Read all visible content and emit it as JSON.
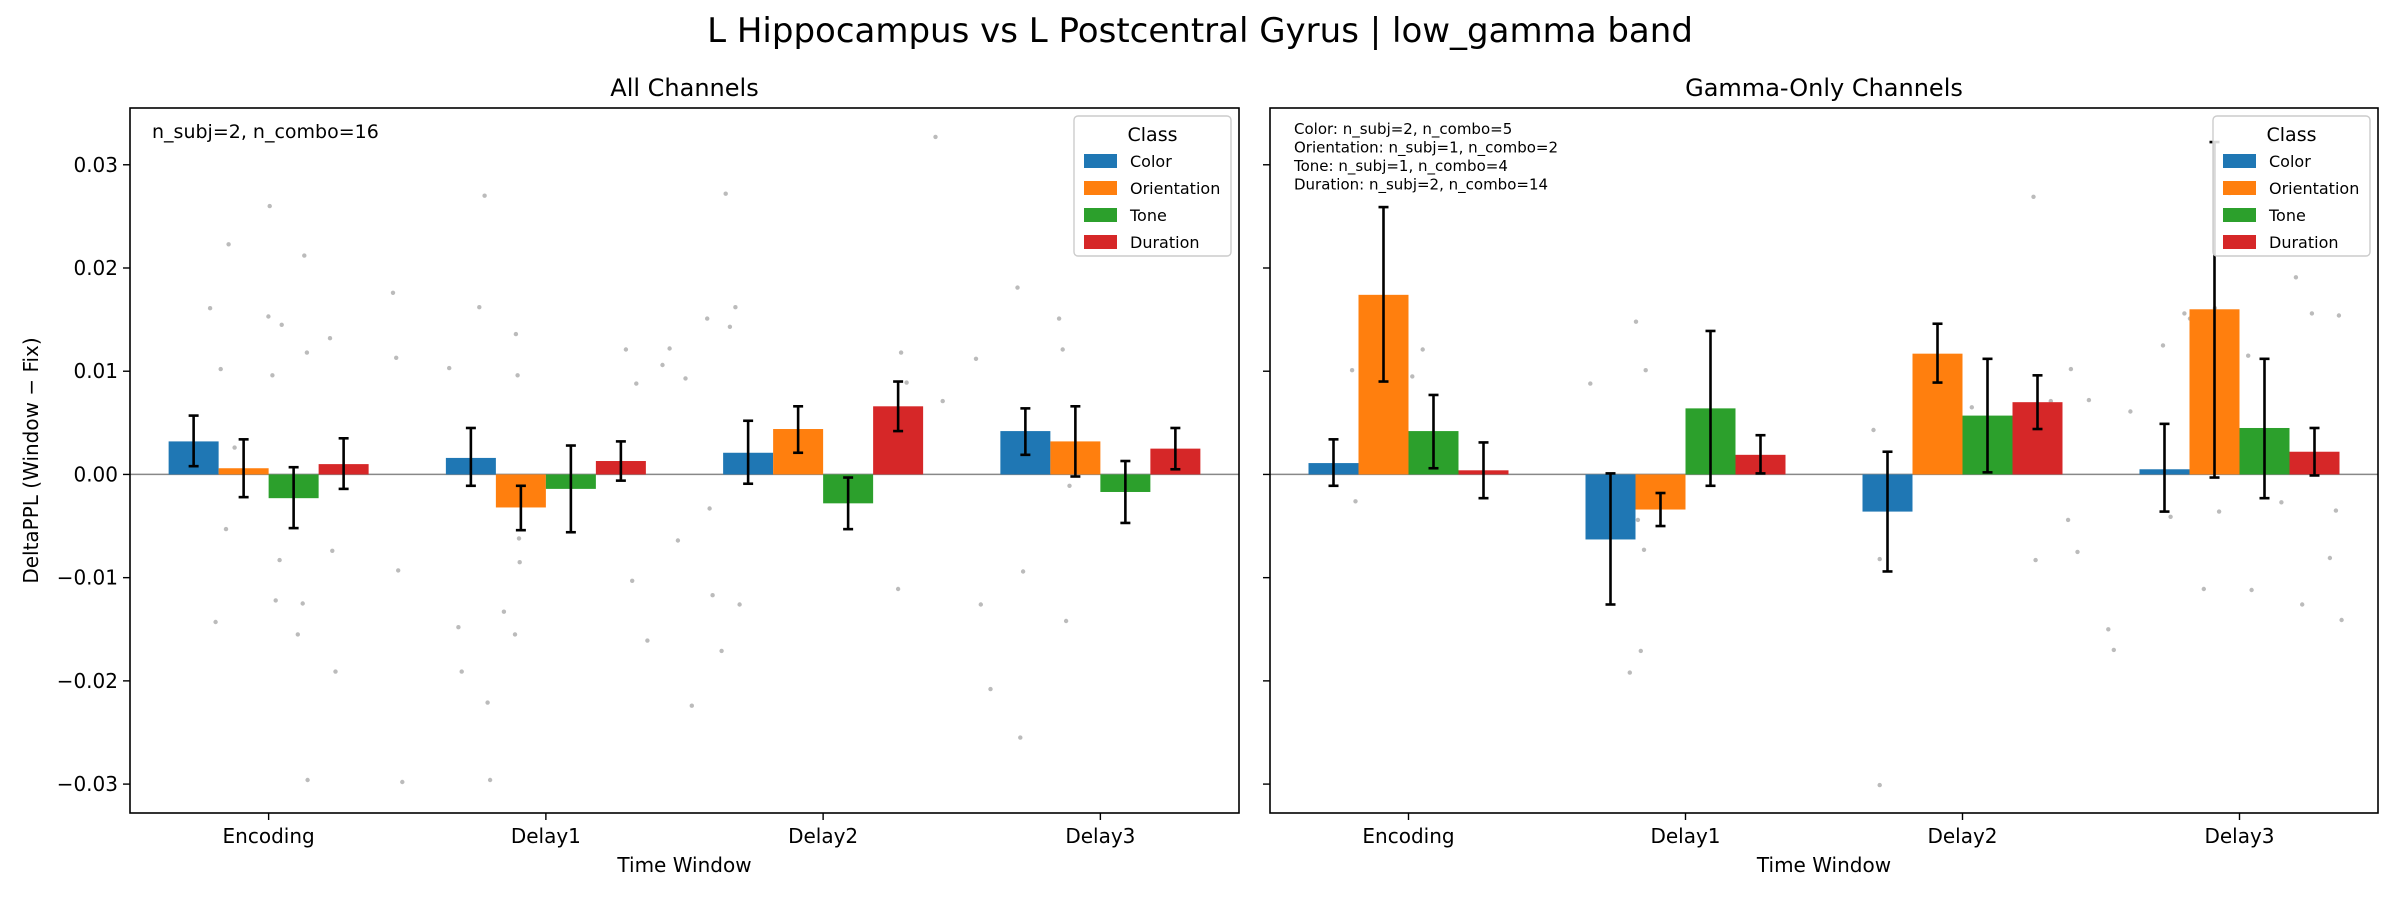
{
  "suptitle": "L Hippocampus vs L Postcentral Gyrus  |  low_gamma band",
  "ylabel": "DeltaPPL (Window − Fix)",
  "xlabel": "Time Window",
  "legend_title": "Class",
  "colors": {
    "Color": "#1f77b4",
    "Orientation": "#ff7f0e",
    "Tone": "#2ca02c",
    "Duration": "#d62728"
  },
  "chart_data": [
    {
      "type": "bar",
      "title": "All Channels",
      "xlabel": "Time Window",
      "ylabel": "DeltaPPL (Window − Fix)",
      "ylim": [
        -0.0328,
        0.0355
      ],
      "yticks": [
        "−0.03",
        "−0.02",
        "−0.01",
        "0.00",
        "0.01",
        "0.02",
        "0.03"
      ],
      "yticks_values": [
        -0.03,
        -0.02,
        -0.01,
        0.0,
        0.01,
        0.02,
        0.03
      ],
      "categories": [
        "Encoding",
        "Delay1",
        "Delay2",
        "Delay3"
      ],
      "annotations": [
        "n_subj=2, n_combo=16"
      ],
      "legend": {
        "title": "Class",
        "position": "upper right"
      },
      "series": [
        {
          "name": "Color",
          "values": [
            0.0032,
            0.0016,
            0.0021,
            0.0042
          ],
          "err_low": [
            0.0008,
            -0.0011,
            -0.0009,
            0.0019
          ],
          "err_high": [
            0.0057,
            0.0045,
            0.0052,
            0.0064
          ]
        },
        {
          "name": "Orientation",
          "values": [
            0.0006,
            -0.0032,
            0.0044,
            0.0032
          ],
          "err_low": [
            -0.0022,
            -0.0054,
            0.0021,
            -0.0002
          ],
          "err_high": [
            0.0034,
            -0.0011,
            0.0066,
            0.0066
          ]
        },
        {
          "name": "Tone",
          "values": [
            -0.0023,
            -0.0014,
            -0.0028,
            -0.0017
          ],
          "err_low": [
            -0.0052,
            -0.0056,
            -0.0053,
            -0.0047
          ],
          "err_high": [
            0.0007,
            0.0028,
            -0.0003,
            0.0013
          ]
        },
        {
          "name": "Duration",
          "values": [
            0.001,
            0.0013,
            0.0066,
            0.0025
          ],
          "err_low": [
            -0.0014,
            -0.0006,
            0.0042,
            0.0005
          ],
          "err_high": [
            0.0035,
            0.0032,
            0.009,
            0.0045
          ]
        }
      ],
      "points": [
        {
          "x": 0.1155,
          "y": 0.0161
        },
        {
          "x": 0.1308,
          "y": 0.0102
        },
        {
          "x": 0.1235,
          "y": -0.0143
        },
        {
          "x": 0.1385,
          "y": -0.0053
        },
        {
          "x": 0.1422,
          "y": 0.0223
        },
        {
          "x": 0.1509,
          "y": 0.0026
        },
        {
          "x": 0.2015,
          "y": 0.026
        },
        {
          "x": 0.1997,
          "y": 0.0153
        },
        {
          "x": 0.2055,
          "y": 0.0096
        },
        {
          "x": 0.2102,
          "y": -0.0122
        },
        {
          "x": 0.2158,
          "y": -0.0083
        },
        {
          "x": 0.2189,
          "y": 0.0145
        },
        {
          "x": 0.2515,
          "y": 0.0212
        },
        {
          "x": 0.2552,
          "y": 0.0118
        },
        {
          "x": 0.2491,
          "y": -0.0125
        },
        {
          "x": 0.2421,
          "y": -0.0155
        },
        {
          "x": 0.2562,
          "y": -0.0296
        },
        {
          "x": 0.2885,
          "y": 0.0132
        },
        {
          "x": 0.2918,
          "y": -0.0074
        },
        {
          "x": 0.2965,
          "y": -0.0191
        },
        {
          "x": 0.3795,
          "y": 0.0176
        },
        {
          "x": 0.3841,
          "y": 0.0113
        },
        {
          "x": 0.3869,
          "y": -0.0093
        },
        {
          "x": 0.3928,
          "y": -0.0298
        },
        {
          "x": 0.4605,
          "y": 0.0103
        },
        {
          "x": 0.4738,
          "y": -0.0148
        },
        {
          "x": 0.4785,
          "y": -0.0191
        },
        {
          "x": 0.5039,
          "y": 0.0162
        },
        {
          "x": 0.5116,
          "y": 0.027
        },
        {
          "x": 0.5159,
          "y": -0.0221
        },
        {
          "x": 0.5195,
          "y": -0.0296
        },
        {
          "x": 0.5568,
          "y": 0.0136
        },
        {
          "x": 0.5592,
          "y": 0.0096
        },
        {
          "x": 0.5612,
          "y": -0.0062
        },
        {
          "x": 0.5623,
          "y": -0.0085
        },
        {
          "x": 0.5395,
          "y": -0.0133
        },
        {
          "x": 0.5555,
          "y": -0.0155
        },
        {
          "x": 0.7155,
          "y": 0.0121
        },
        {
          "x": 0.7305,
          "y": 0.0088
        },
        {
          "x": 0.7245,
          "y": -0.0103
        },
        {
          "x": 0.7465,
          "y": -0.0161
        },
        {
          "x": 0.7682,
          "y": 0.0106
        },
        {
          "x": 0.7785,
          "y": 0.0122
        },
        {
          "x": 0.7905,
          "y": -0.0064
        },
        {
          "x": 0.8015,
          "y": 0.0093
        },
        {
          "x": 0.8105,
          "y": -0.0224
        },
        {
          "x": 0.8328,
          "y": 0.0151
        },
        {
          "x": 0.8362,
          "y": -0.0033
        },
        {
          "x": 0.8405,
          "y": -0.0117
        },
        {
          "x": 0.8595,
          "y": 0.0272
        },
        {
          "x": 0.8735,
          "y": 0.0162
        },
        {
          "x": 0.8655,
          "y": 0.0143
        },
        {
          "x": 0.8795,
          "y": -0.0126
        },
        {
          "x": 0.8535,
          "y": -0.0171
        },
        {
          "x": 1.1125,
          "y": 0.0118
        },
        {
          "x": 1.1205,
          "y": 0.0089
        },
        {
          "x": 1.1082,
          "y": -0.0111
        },
        {
          "x": 1.1225,
          "y": 0.0057
        },
        {
          "x": 1.1621,
          "y": 0.0327
        },
        {
          "x": 1.1725,
          "y": 0.0071
        },
        {
          "x": 1.2205,
          "y": 0.0112
        },
        {
          "x": 1.2275,
          "y": -0.0126
        },
        {
          "x": 1.2415,
          "y": -0.0208
        },
        {
          "x": 1.2805,
          "y": 0.0181
        },
        {
          "x": 1.2885,
          "y": -0.0094
        },
        {
          "x": 1.2845,
          "y": -0.0255
        },
        {
          "x": 1.3405,
          "y": 0.0151
        },
        {
          "x": 1.3457,
          "y": 0.0121
        },
        {
          "x": 1.3505,
          "y": -0.0142
        },
        {
          "x": 1.3555,
          "y": -0.0011
        }
      ]
    },
    {
      "type": "bar",
      "title": "Gamma-Only Channels",
      "xlabel": "Time Window",
      "ylabel": "",
      "ylim": [
        -0.0328,
        0.0355
      ],
      "categories": [
        "Encoding",
        "Delay1",
        "Delay2",
        "Delay3"
      ],
      "annotations": [
        "Color: n_subj=2, n_combo=5",
        "Orientation: n_subj=1, n_combo=2",
        "Tone: n_subj=1, n_combo=4",
        "Duration: n_subj=2, n_combo=14"
      ],
      "legend": {
        "title": "Class",
        "position": "upper right"
      },
      "series": [
        {
          "name": "Color",
          "values": [
            0.0011,
            -0.0063,
            -0.0036,
            0.0005
          ],
          "err_low": [
            -0.0011,
            -0.0126,
            -0.0094,
            -0.0036
          ],
          "err_high": [
            0.0034,
            0.0001,
            0.0022,
            0.0049
          ]
        },
        {
          "name": "Orientation",
          "values": [
            0.0174,
            -0.0034,
            0.0117,
            0.016
          ],
          "err_low": [
            0.009,
            -0.005,
            0.0089,
            -0.0003
          ],
          "err_high": [
            0.0259,
            -0.0018,
            0.0146,
            0.0322
          ]
        },
        {
          "name": "Tone",
          "values": [
            0.0042,
            0.0064,
            0.0057,
            0.0045
          ],
          "err_low": [
            0.0006,
            -0.0011,
            0.0002,
            -0.0023
          ],
          "err_high": [
            0.0077,
            0.0139,
            0.0112,
            0.0112
          ]
        },
        {
          "name": "Duration",
          "values": [
            0.0004,
            0.0019,
            0.007,
            0.0022
          ],
          "err_low": [
            -0.0023,
            0.0001,
            0.0044,
            -0.0001
          ],
          "err_high": [
            0.0031,
            0.0038,
            0.0096,
            0.0045
          ]
        }
      ],
      "points": [
        {
          "x": 0.1185,
          "y": 0.0101
        },
        {
          "x": 0.1235,
          "y": -0.0026
        },
        {
          "x": 0.2205,
          "y": 0.0121
        },
        {
          "x": 0.2055,
          "y": 0.0095
        },
        {
          "x": 0.4625,
          "y": 0.0088
        },
        {
          "x": 0.4715,
          "y": -0.0052
        },
        {
          "x": 0.5285,
          "y": 0.0148
        },
        {
          "x": 0.5425,
          "y": 0.0101
        },
        {
          "x": 0.5312,
          "y": -0.0044
        },
        {
          "x": 0.5195,
          "y": -0.0192
        },
        {
          "x": 0.5355,
          "y": -0.0171
        },
        {
          "x": 0.5401,
          "y": -0.0073
        },
        {
          "x": 0.8715,
          "y": 0.0043
        },
        {
          "x": 0.8805,
          "y": -0.0082
        },
        {
          "x": 0.8805,
          "y": -0.0301
        },
        {
          "x": 0.9655,
          "y": 0.0022
        },
        {
          "x": 1.0135,
          "y": 0.0065
        },
        {
          "x": 1.1025,
          "y": 0.0269
        },
        {
          "x": 1.1055,
          "y": -0.0083
        },
        {
          "x": 1.1275,
          "y": 0.0071
        },
        {
          "x": 1.1565,
          "y": 0.0102
        },
        {
          "x": 1.1661,
          "y": -0.0075
        },
        {
          "x": 1.1525,
          "y": -0.0044
        },
        {
          "x": 1.1825,
          "y": 0.0072
        },
        {
          "x": 1.2105,
          "y": -0.015
        },
        {
          "x": 1.2185,
          "y": -0.017
        },
        {
          "x": 1.2425,
          "y": 0.0061
        },
        {
          "x": 1.2895,
          "y": 0.0125
        },
        {
          "x": 1.3005,
          "y": -0.0041
        },
        {
          "x": 1.3205,
          "y": 0.0156
        },
        {
          "x": 1.3285,
          "y": 0.0151
        },
        {
          "x": 1.3485,
          "y": -0.0111
        },
        {
          "x": 1.3645,
          "y": 0.0161
        },
        {
          "x": 1.3705,
          "y": -0.0036
        },
        {
          "x": 1.3855,
          "y": 0.0272
        },
        {
          "x": 1.3835,
          "y": 0.0109
        },
        {
          "x": 1.4125,
          "y": 0.0115
        },
        {
          "x": 1.4175,
          "y": -0.0112
        },
        {
          "x": 1.4465,
          "y": 0.0323
        },
        {
          "x": 1.4605,
          "y": -0.0027
        },
        {
          "x": 1.4815,
          "y": 0.0191
        },
        {
          "x": 1.4905,
          "y": -0.0126
        },
        {
          "x": 1.5045,
          "y": 0.0156
        },
        {
          "x": 1.5305,
          "y": -0.0081
        },
        {
          "x": 1.5435,
          "y": 0.0154
        },
        {
          "x": 1.5475,
          "y": -0.0141
        },
        {
          "x": 1.5392,
          "y": -0.0035
        }
      ]
    }
  ]
}
